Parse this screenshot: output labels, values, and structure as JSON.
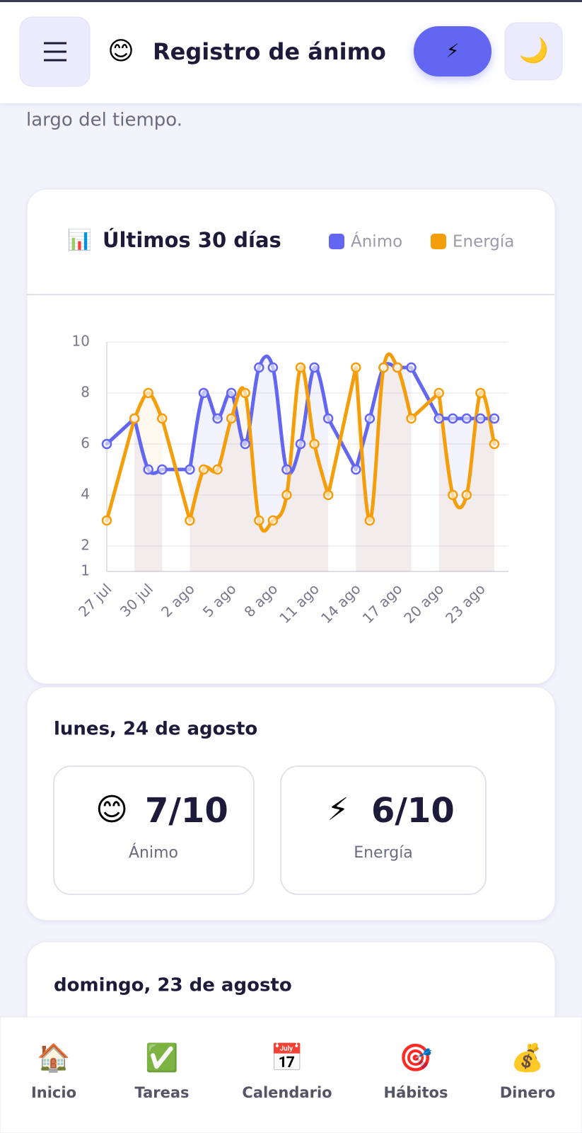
{
  "header": {
    "icon": "😊",
    "title": "Registro de ánimo",
    "action_icon": "⚡",
    "theme_icon": "🌙"
  },
  "intro_text": "largo del tiempo.",
  "chart_data": {
    "type": "line",
    "icon": "📊",
    "title": "Últimos 30 días",
    "categories": [
      "27 jul",
      null,
      null,
      "30 jul",
      null,
      null,
      "2 ago",
      null,
      null,
      "5 ago",
      null,
      null,
      "8 ago",
      null,
      null,
      "11 ago",
      null,
      null,
      "14 ago",
      null,
      null,
      "17 ago",
      null,
      null,
      "20 ago",
      null,
      null,
      "23 ago",
      null
    ],
    "series": [
      {
        "name": "Ánimo",
        "color": "#6366f1",
        "fill": "rgba(99,102,241,0.08)",
        "values": [
          6,
          null,
          7,
          5,
          5,
          null,
          5,
          8,
          7,
          8,
          6,
          9,
          9,
          5,
          6,
          9,
          7,
          null,
          5,
          7,
          9,
          9,
          9,
          null,
          7,
          7,
          7,
          7,
          7
        ]
      },
      {
        "name": "Energía",
        "color": "#f59e0b",
        "fill": "rgba(245,158,11,0.07)",
        "values": [
          3,
          null,
          7,
          8,
          7,
          null,
          3,
          5,
          5,
          7,
          8,
          3,
          3,
          4,
          9,
          6,
          4,
          null,
          9,
          3,
          9,
          9,
          7,
          null,
          8,
          4,
          4,
          8,
          6
        ]
      }
    ],
    "ylim": [
      1,
      10
    ],
    "yticks": [
      1,
      2,
      4,
      6,
      8,
      10
    ],
    "grid": true,
    "smooth": true,
    "span_gaps": true,
    "legend": "top-right"
  },
  "entries": [
    {
      "date": "lunes, 24 de agosto",
      "mood": {
        "icon": "😊",
        "value": "7/10",
        "label": "Ánimo"
      },
      "energy": {
        "icon": "⚡",
        "value": "6/10",
        "label": "Energía"
      }
    },
    {
      "date": "domingo, 23 de agosto"
    }
  ],
  "nav": [
    {
      "icon": "🏠",
      "label": "Inicio"
    },
    {
      "icon": "✅",
      "label": "Tareas"
    },
    {
      "icon": "📅",
      "label": "Calendario"
    },
    {
      "icon": "🎯",
      "label": "Hábitos"
    },
    {
      "icon": "💰",
      "label": "Dinero"
    }
  ]
}
